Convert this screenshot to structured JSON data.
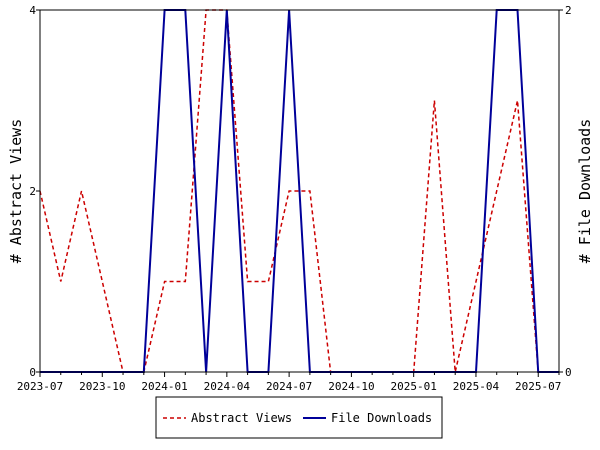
{
  "chart_data": {
    "type": "line",
    "x": [
      "2023-07",
      "2023-08",
      "2023-09",
      "2023-10",
      "2023-11",
      "2023-12",
      "2024-01",
      "2024-02",
      "2024-03",
      "2024-04",
      "2024-05",
      "2024-06",
      "2024-07",
      "2024-08",
      "2024-09",
      "2024-10",
      "2024-11",
      "2024-12",
      "2025-01",
      "2025-02",
      "2025-03",
      "2025-04",
      "2025-05",
      "2025-06",
      "2025-07",
      "2025-08"
    ],
    "x_ticks": [
      "2023-07",
      "2023-10",
      "2024-01",
      "2024-04",
      "2024-07",
      "2024-10",
      "2025-01",
      "2025-04",
      "2025-07"
    ],
    "series": [
      {
        "name": "Abstract Views",
        "axis": "left",
        "color": "#cc0000",
        "dash": "dashed",
        "values": [
          2,
          1,
          2,
          1,
          0,
          0,
          1,
          1,
          4,
          4,
          1,
          1,
          2,
          2,
          0,
          0,
          0,
          0,
          0,
          3,
          0,
          1,
          2,
          3,
          0,
          0
        ]
      },
      {
        "name": "File Downloads",
        "axis": "right",
        "color": "#000099",
        "dash": "solid",
        "values": [
          0,
          0,
          0,
          0,
          0,
          0,
          2,
          2,
          0,
          2,
          0,
          0,
          2,
          0,
          0,
          0,
          0,
          0,
          0,
          0,
          0,
          0,
          2,
          2,
          0,
          0
        ]
      }
    ],
    "ylabel": "# Abstract Views",
    "ylabel_right": "# File Downloads",
    "ylim": [
      0,
      4
    ],
    "ylim_right": [
      0,
      2
    ],
    "yticks": [
      "0",
      "2",
      "4"
    ],
    "yticks_right": [
      "0",
      "2"
    ],
    "grid": false,
    "legend": "bottom"
  }
}
